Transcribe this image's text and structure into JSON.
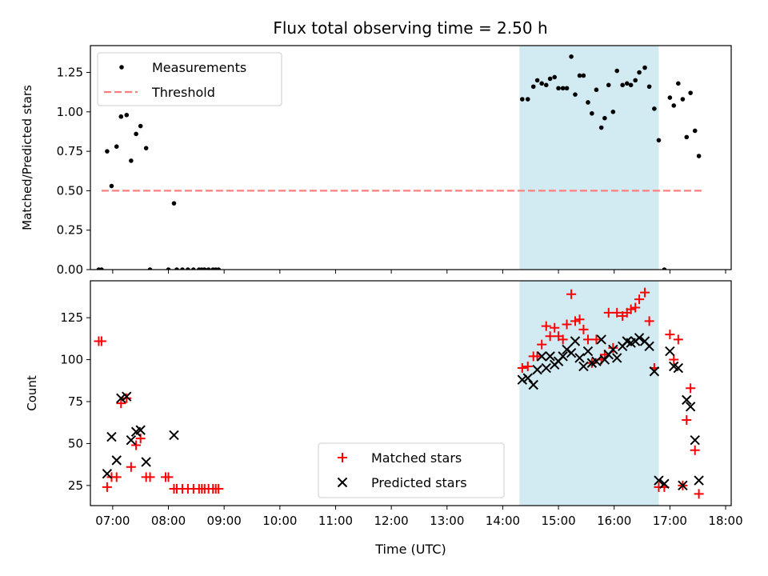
{
  "figure": {
    "title": "Flux total observing time = 2.50 h",
    "highlight_color": "#add8e6"
  },
  "chart_data": [
    {
      "type": "scatter",
      "ylabel": "Matched/Predicted stars",
      "xlim": [
        6.6,
        18.1
      ],
      "ylim": [
        0,
        1.42
      ],
      "yticks": [
        "0.00",
        "0.25",
        "0.50",
        "0.75",
        "1.00",
        "1.25"
      ],
      "legend_location": "top-left",
      "highlight_interval": [
        14.3,
        16.8
      ],
      "series": [
        {
          "name": "Measurements",
          "marker": "dot",
          "color": "#000000",
          "x": [
            6.75,
            6.8,
            6.9,
            6.98,
            7.07,
            7.15,
            7.25,
            7.33,
            7.42,
            7.5,
            7.6,
            7.67,
            8.0,
            8.1,
            8.15,
            8.25,
            8.35,
            8.45,
            8.55,
            8.6,
            8.65,
            8.72,
            8.8,
            8.85,
            8.9,
            14.35,
            14.45,
            14.55,
            14.62,
            14.7,
            14.78,
            14.85,
            14.93,
            15.0,
            15.08,
            15.15,
            15.23,
            15.3,
            15.38,
            15.45,
            15.53,
            15.6,
            15.68,
            15.77,
            15.83,
            15.9,
            15.98,
            16.05,
            16.15,
            16.23,
            16.3,
            16.38,
            16.45,
            16.55,
            16.63,
            16.72,
            16.8,
            16.9,
            17.0,
            17.07,
            17.15,
            17.23,
            17.3,
            17.37,
            17.45,
            17.52
          ],
          "y": [
            0,
            0,
            0.75,
            0.53,
            0.78,
            0.97,
            0.98,
            0.69,
            0.86,
            0.91,
            0.77,
            0,
            0,
            0.42,
            0,
            0,
            0,
            0,
            0,
            0,
            0,
            0,
            0,
            0,
            0,
            1.08,
            1.08,
            1.16,
            1.2,
            1.18,
            1.17,
            1.21,
            1.22,
            1.15,
            1.15,
            1.15,
            1.35,
            1.11,
            1.23,
            1.23,
            1.06,
            0.99,
            1.14,
            0.9,
            0.96,
            1.17,
            1.0,
            1.26,
            1.17,
            1.18,
            1.17,
            1.2,
            1.25,
            1.28,
            1.16,
            1.02,
            0.82,
            0,
            1.09,
            1.04,
            1.18,
            1.08,
            0.84,
            1.12,
            0.88,
            0.72
          ]
        },
        {
          "name": "Threshold",
          "style": "dashed",
          "color": "#ff7f7f",
          "x": [
            6.8,
            17.6
          ],
          "y": [
            0.5,
            0.5
          ]
        }
      ]
    },
    {
      "type": "scatter",
      "xlabel": "Time (UTC)",
      "ylabel": "Count",
      "xlim": [
        6.6,
        18.1
      ],
      "ylim": [
        13,
        147
      ],
      "yticks": [
        "25",
        "50",
        "75",
        "100",
        "125"
      ],
      "xtick_values": [
        7,
        8,
        9,
        10,
        11,
        12,
        13,
        14,
        15,
        16,
        17,
        18
      ],
      "xtick_labels": [
        "07:00",
        "08:00",
        "09:00",
        "10:00",
        "11:00",
        "12:00",
        "13:00",
        "14:00",
        "15:00",
        "16:00",
        "17:00",
        "18:00"
      ],
      "legend_location": "bottom-center",
      "highlight_interval": [
        14.3,
        16.8
      ],
      "series": [
        {
          "name": "Matched stars",
          "marker": "plus",
          "color": "#ff0000",
          "x": [
            6.75,
            6.8,
            6.9,
            6.98,
            7.07,
            7.15,
            7.25,
            7.33,
            7.42,
            7.5,
            7.6,
            7.67,
            7.95,
            8.0,
            8.1,
            8.15,
            8.25,
            8.35,
            8.45,
            8.55,
            8.6,
            8.65,
            8.72,
            8.8,
            8.85,
            8.9,
            14.35,
            14.45,
            14.55,
            14.62,
            14.7,
            14.78,
            14.85,
            14.93,
            15.0,
            15.08,
            15.15,
            15.23,
            15.3,
            15.38,
            15.45,
            15.53,
            15.6,
            15.68,
            15.77,
            15.83,
            15.9,
            15.98,
            16.05,
            16.15,
            16.23,
            16.3,
            16.38,
            16.45,
            16.55,
            16.63,
            16.72,
            16.8,
            16.9,
            17.0,
            17.07,
            17.15,
            17.23,
            17.3,
            17.37,
            17.45,
            17.52
          ],
          "y": [
            111,
            111,
            24,
            30,
            30,
            74,
            77,
            36,
            49,
            53,
            30,
            30,
            30,
            30,
            23,
            23,
            23,
            23,
            23,
            23,
            23,
            23,
            23,
            23,
            23,
            23,
            95,
            96,
            102,
            102,
            109,
            120,
            114,
            119,
            114,
            112,
            121,
            139,
            123,
            124,
            118,
            112,
            98,
            112,
            100,
            103,
            128,
            107,
            128,
            126,
            128,
            130,
            131,
            136,
            140,
            123,
            95,
            24,
            24,
            115,
            100,
            112,
            25,
            64,
            83,
            46,
            20
          ]
        },
        {
          "name": "Predicted stars",
          "marker": "x",
          "color": "#000000",
          "x": [
            6.9,
            6.98,
            7.07,
            7.15,
            7.25,
            7.33,
            7.42,
            7.5,
            7.6,
            8.1,
            14.35,
            14.45,
            14.55,
            14.62,
            14.7,
            14.78,
            14.85,
            14.93,
            15.0,
            15.08,
            15.15,
            15.23,
            15.3,
            15.38,
            15.45,
            15.53,
            15.6,
            15.68,
            15.77,
            15.83,
            15.9,
            15.98,
            16.05,
            16.15,
            16.23,
            16.3,
            16.38,
            16.45,
            16.55,
            16.63,
            16.72,
            16.8,
            16.9,
            17.0,
            17.07,
            17.15,
            17.23,
            17.3,
            17.37,
            17.45,
            17.52
          ],
          "y": [
            32,
            54,
            40,
            77,
            78,
            52,
            57,
            58,
            39,
            55,
            88,
            89,
            85,
            94,
            102,
            95,
            102,
            97,
            99,
            102,
            106,
            104,
            111,
            101,
            96,
            105,
            98,
            99,
            112,
            100,
            103,
            106,
            101,
            108,
            111,
            110,
            111,
            113,
            111,
            108,
            93,
            28,
            26,
            105,
            96,
            95,
            25,
            76,
            72,
            52,
            28
          ]
        }
      ]
    }
  ]
}
